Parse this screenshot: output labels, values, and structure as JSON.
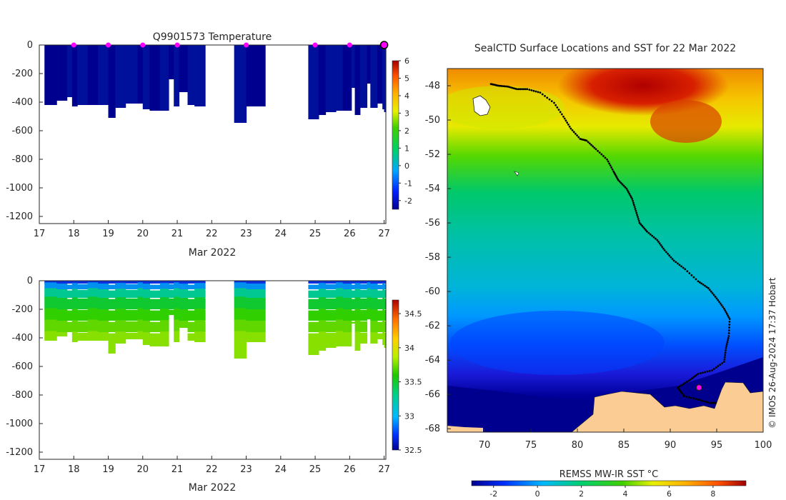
{
  "chart_data": [
    {
      "type": "heatmap",
      "title": "Q9901573  Temperature",
      "xlabel": "Mar 2022",
      "ylabel": "",
      "xlim": [
        17,
        27.05
      ],
      "ylim": [
        -1250,
        0
      ],
      "xticks": [
        "17",
        "18",
        "19",
        "20",
        "21",
        "22",
        "23",
        "24",
        "25",
        "26",
        "27"
      ],
      "yticks": [
        "0",
        "-200",
        "-400",
        "-600",
        "-800",
        "-1000",
        "-1200"
      ],
      "colorbar": {
        "min": -2.5,
        "max": 6,
        "ticks": [
          "-2",
          "-1",
          "0",
          "1",
          "2",
          "3",
          "4",
          "5",
          "6"
        ]
      },
      "surfacing_markers": [
        18,
        19,
        20,
        21,
        23,
        25,
        26
      ],
      "last_position_marker": 27,
      "profiles_depth": [
        [
          17.15,
          -420
        ],
        [
          17.5,
          -390
        ],
        [
          17.8,
          -365
        ],
        [
          17.95,
          -430
        ],
        [
          18.1,
          -420
        ],
        [
          18.4,
          -420
        ],
        [
          18.7,
          -420
        ],
        [
          19.0,
          -510
        ],
        [
          19.2,
          -440
        ],
        [
          19.5,
          -410
        ],
        [
          19.85,
          -410
        ],
        [
          20.0,
          -450
        ],
        [
          20.2,
          -460
        ],
        [
          20.5,
          -460
        ],
        [
          20.75,
          -240
        ],
        [
          20.9,
          -430
        ],
        [
          21.05,
          -330
        ],
        [
          21.3,
          -420
        ],
        [
          21.5,
          -430
        ],
        [
          21.8,
          -430
        ],
        [
          22.65,
          -545
        ],
        [
          23.0,
          -430
        ],
        [
          24.8,
          -520
        ],
        [
          25.1,
          -490
        ],
        [
          25.3,
          -470
        ],
        [
          25.6,
          -460
        ],
        [
          25.8,
          -460
        ],
        [
          26.05,
          -300
        ],
        [
          26.15,
          -490
        ],
        [
          26.3,
          -440
        ],
        [
          26.5,
          -270
        ],
        [
          26.6,
          -440
        ],
        [
          26.8,
          -410
        ],
        [
          26.95,
          -450
        ],
        [
          27.0,
          -470
        ]
      ],
      "profiles_value": [
        -1.7,
        -1.7,
        -1.6,
        -1.7,
        -1.6,
        -1.7,
        -1.6,
        -1.7,
        -1.6,
        -1.6,
        -1.7,
        -1.6,
        -1.7,
        -1.6,
        -1.7,
        -1.6,
        -1.7,
        -1.6,
        -1.6,
        -1.7,
        -1.6,
        -1.7,
        -1.6,
        -1.7,
        -1.6,
        -1.6,
        -1.7,
        -1.6,
        -1.7,
        -1.6,
        -1.7,
        -1.6,
        -1.7,
        -1.6,
        -1.6
      ]
    },
    {
      "type": "heatmap",
      "title": "",
      "xlabel": "Mar 2022",
      "ylabel": "",
      "xlim": [
        17,
        27.05
      ],
      "ylim": [
        -1250,
        0
      ],
      "xticks": [
        "17",
        "18",
        "19",
        "20",
        "21",
        "22",
        "23",
        "24",
        "25",
        "26",
        "27"
      ],
      "yticks": [
        "0",
        "-200",
        "-400",
        "-600",
        "-800",
        "-1000",
        "-1200"
      ],
      "colorbar": {
        "min": 32.5,
        "max": 34.7,
        "ticks": [
          "32.5",
          "33",
          "33.5",
          "34",
          "34.5"
        ]
      },
      "salinity_layers": [
        [
          0,
          20,
          32.9
        ],
        [
          20,
          60,
          33.1
        ],
        [
          60,
          120,
          33.45
        ],
        [
          120,
          200,
          33.55
        ],
        [
          200,
          280,
          33.65
        ],
        [
          280,
          360,
          33.72
        ],
        [
          360,
          560,
          33.8
        ]
      ]
    },
    {
      "type": "heatmap",
      "title": "SealCTD Surface Locations and SST for 22 Mar 2022",
      "xlabel": "",
      "ylabel": "",
      "xlim": [
        66,
        100
      ],
      "ylim": [
        -68.2,
        -47
      ],
      "xticks": [
        "70",
        "75",
        "80",
        "85",
        "90",
        "95",
        "100"
      ],
      "yticks": [
        "-48",
        "-50",
        "-52",
        "-54",
        "-56",
        "-58",
        "-60",
        "-62",
        "-64",
        "-66",
        "-68"
      ],
      "colorbar": {
        "label": "REMSS MW-IR SST °C",
        "min": -3,
        "max": 9.5,
        "ticks": [
          "-2",
          "0",
          "2",
          "4",
          "6",
          "8"
        ]
      },
      "track": [
        [
          70.7,
          -47.9
        ],
        [
          71.5,
          -48.0
        ],
        [
          72.5,
          -48.05
        ],
        [
          73.5,
          -48.2
        ],
        [
          74.6,
          -48.2
        ],
        [
          76.0,
          -48.4
        ],
        [
          77.5,
          -49.0
        ],
        [
          78.5,
          -49.8
        ],
        [
          79.3,
          -50.5
        ],
        [
          80.3,
          -51.1
        ],
        [
          81.0,
          -51.2
        ],
        [
          82.0,
          -51.7
        ],
        [
          83.2,
          -52.3
        ],
        [
          83.9,
          -53.0
        ],
        [
          84.4,
          -53.5
        ],
        [
          85.3,
          -54.0
        ],
        [
          85.9,
          -54.6
        ],
        [
          86.3,
          -55.3
        ],
        [
          86.7,
          -56.0
        ],
        [
          87.5,
          -56.5
        ],
        [
          88.6,
          -57.0
        ],
        [
          89.4,
          -57.6
        ],
        [
          90.4,
          -58.2
        ],
        [
          91.6,
          -58.7
        ],
        [
          93.0,
          -59.4
        ],
        [
          94.1,
          -59.8
        ],
        [
          95.0,
          -60.4
        ],
        [
          95.8,
          -61.0
        ],
        [
          96.4,
          -61.6
        ],
        [
          96.3,
          -62.6
        ],
        [
          96.0,
          -63.3
        ],
        [
          95.8,
          -64.1
        ],
        [
          94.5,
          -64.6
        ],
        [
          93.0,
          -64.8
        ],
        [
          92.0,
          -65.2
        ],
        [
          90.8,
          -65.6
        ],
        [
          91.5,
          -66.1
        ],
        [
          93.0,
          -66.3
        ],
        [
          94.3,
          -66.5
        ],
        [
          95.0,
          -66.5
        ]
      ],
      "last_position": [
        93.1,
        -65.6
      ]
    }
  ],
  "footer": {
    "credit": "© IMOS 26-Aug-2024 17:37 Hobart"
  },
  "colors": {
    "axis": "#262626",
    "marker": "#ff00ff",
    "track": "#000000",
    "land": "#fbcd94"
  }
}
